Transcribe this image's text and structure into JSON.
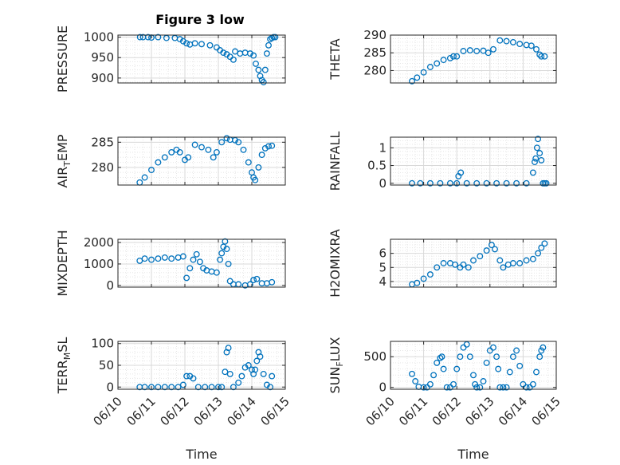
{
  "figure": {
    "title": "Figure 3 low",
    "xlabel": "Time",
    "x_tick_labels": [
      "06/10",
      "06/11",
      "06/12",
      "06/13",
      "06/14",
      "06/15"
    ],
    "marker_color": "#0072bd",
    "grid": true
  },
  "chart_data": [
    {
      "type": "scatter",
      "title": "Figure 3 low",
      "ylabel": "PRESSURE",
      "ylabel_main": "PRESSURE",
      "ylabel_sub": "",
      "ylabel_tail": "",
      "xlabel": "",
      "xlim": [
        "06/10",
        "06/15"
      ],
      "ylim": [
        888,
        1005
      ],
      "yticks": [
        900,
        950,
        1000
      ],
      "ytick_labels": [
        "900",
        "950",
        "1000"
      ],
      "x": [
        10.66,
        10.75,
        10.9,
        11.0,
        11.2,
        11.45,
        11.7,
        11.85,
        11.95,
        12.05,
        12.15,
        12.3,
        12.5,
        12.75,
        12.95,
        13.05,
        13.15,
        13.25,
        13.35,
        13.45,
        13.5,
        13.65,
        13.8,
        13.95,
        14.05,
        14.12,
        14.2,
        14.25,
        14.3,
        14.35,
        14.4,
        14.45,
        14.5,
        14.55,
        14.6,
        14.65,
        14.7
      ],
      "y": [
        1000,
        1000,
        1000,
        999,
        1000,
        998,
        998,
        995,
        990,
        985,
        982,
        985,
        983,
        980,
        975,
        968,
        962,
        958,
        952,
        945,
        965,
        960,
        962,
        960,
        955,
        935,
        920,
        905,
        895,
        890,
        920,
        960,
        980,
        995,
        998,
        1000,
        1000
      ]
    },
    {
      "type": "scatter",
      "ylabel": "THETA",
      "ylabel_main": "THETA",
      "ylabel_sub": "",
      "ylabel_tail": "",
      "xlabel": "",
      "xlim": [
        "06/10",
        "06/15"
      ],
      "ylim": [
        276.5,
        290
      ],
      "yticks": [
        280,
        285,
        290
      ],
      "ytick_labels": [
        "280",
        "285",
        "290"
      ],
      "x": [
        10.65,
        10.8,
        11.0,
        11.2,
        11.4,
        11.6,
        11.8,
        11.9,
        12.0,
        12.2,
        12.4,
        12.6,
        12.8,
        12.95,
        13.1,
        13.3,
        13.5,
        13.7,
        13.9,
        14.1,
        14.25,
        14.4,
        14.5,
        14.55,
        14.65
      ],
      "y": [
        277,
        278,
        279.5,
        281,
        282,
        283,
        283.5,
        284,
        284,
        285.5,
        285.7,
        285.5,
        285.6,
        285,
        286,
        288.5,
        288.3,
        288,
        287.5,
        287.2,
        287,
        286,
        284.5,
        284,
        284
      ]
    },
    {
      "type": "scatter",
      "ylabel": "AIR_TEMP",
      "ylabel_main": "AIR",
      "ylabel_sub": "T",
      "ylabel_tail": "EMP",
      "xlabel": "",
      "xlim": [
        "06/10",
        "06/15"
      ],
      "ylim": [
        276.5,
        286
      ],
      "yticks": [
        280,
        285
      ],
      "ytick_labels": [
        "280",
        "285"
      ],
      "x": [
        10.65,
        10.8,
        11.0,
        11.2,
        11.4,
        11.6,
        11.75,
        11.85,
        12.0,
        12.1,
        12.3,
        12.5,
        12.7,
        12.85,
        12.95,
        13.1,
        13.25,
        13.35,
        13.5,
        13.6,
        13.75,
        13.9,
        14.0,
        14.05,
        14.1,
        14.2,
        14.3,
        14.4,
        14.5,
        14.6
      ],
      "y": [
        277,
        278,
        279.5,
        281,
        282,
        283,
        283.5,
        283,
        281.5,
        282,
        284.5,
        284,
        283.5,
        282,
        283,
        285,
        285.8,
        285.5,
        285.4,
        285,
        283.5,
        281,
        279,
        278,
        277.5,
        280,
        282.5,
        283.8,
        284.2,
        284.3
      ]
    },
    {
      "type": "scatter",
      "ylabel": "RAINFALL",
      "ylabel_main": "RAINFALL",
      "ylabel_sub": "",
      "ylabel_tail": "",
      "xlabel": "",
      "xlim": [
        "06/10",
        "06/15"
      ],
      "ylim": [
        -0.05,
        1.3
      ],
      "yticks": [
        0,
        0.5,
        1
      ],
      "ytick_labels": [
        "0",
        "0.5",
        "1"
      ],
      "x": [
        10.65,
        10.9,
        11.2,
        11.5,
        11.8,
        12.0,
        12.05,
        12.12,
        12.3,
        12.6,
        12.9,
        13.2,
        13.5,
        13.8,
        14.1,
        14.3,
        14.35,
        14.38,
        14.42,
        14.45,
        14.5,
        14.55,
        14.6,
        14.65,
        14.7
      ],
      "y": [
        0,
        0,
        0,
        0,
        0,
        0,
        0.2,
        0.3,
        0,
        0,
        0,
        0,
        0,
        0,
        0,
        0.3,
        0.6,
        0.7,
        1.0,
        1.25,
        0.85,
        0.65,
        0,
        0,
        0
      ]
    },
    {
      "type": "scatter",
      "ylabel": "MIXDEPTH",
      "ylabel_main": "MIXDEPTH",
      "ylabel_sub": "",
      "ylabel_tail": "",
      "xlabel": "",
      "xlim": [
        "06/10",
        "06/15"
      ],
      "ylim": [
        -80,
        2150
      ],
      "yticks": [
        0,
        1000,
        2000
      ],
      "ytick_labels": [
        "0",
        "1000",
        "2000"
      ],
      "x": [
        10.65,
        10.8,
        11.0,
        11.2,
        11.4,
        11.6,
        11.8,
        11.95,
        12.05,
        12.15,
        12.25,
        12.35,
        12.45,
        12.55,
        12.65,
        12.8,
        12.95,
        13.05,
        13.1,
        13.15,
        13.2,
        13.25,
        13.3,
        13.35,
        13.45,
        13.6,
        13.8,
        13.95,
        14.05,
        14.15,
        14.3,
        14.45,
        14.6
      ],
      "y": [
        1150,
        1250,
        1200,
        1250,
        1300,
        1250,
        1300,
        1350,
        350,
        800,
        1200,
        1450,
        1100,
        800,
        700,
        650,
        600,
        1200,
        1500,
        1800,
        2050,
        1700,
        1000,
        200,
        50,
        50,
        0,
        50,
        250,
        300,
        100,
        100,
        150
      ]
    },
    {
      "type": "scatter",
      "ylabel": "H2OMIXRA",
      "ylabel_main": "H2OMIXRA",
      "ylabel_sub": "",
      "ylabel_tail": "",
      "xlabel": "",
      "xlim": [
        "06/10",
        "06/15"
      ],
      "ylim": [
        3.6,
        7.0
      ],
      "yticks": [
        4,
        5,
        6
      ],
      "ytick_labels": [
        "4",
        "5",
        "6"
      ],
      "x": [
        10.65,
        10.8,
        11.0,
        11.2,
        11.4,
        11.6,
        11.8,
        11.95,
        12.1,
        12.2,
        12.35,
        12.5,
        12.7,
        12.9,
        13.05,
        13.15,
        13.3,
        13.4,
        13.55,
        13.7,
        13.9,
        14.1,
        14.3,
        14.45,
        14.55,
        14.65
      ],
      "y": [
        3.8,
        3.9,
        4.2,
        4.5,
        5.0,
        5.3,
        5.3,
        5.2,
        5.0,
        5.2,
        5.0,
        5.5,
        5.8,
        6.2,
        6.6,
        6.3,
        5.5,
        5.0,
        5.2,
        5.3,
        5.3,
        5.5,
        5.6,
        6.0,
        6.4,
        6.7
      ]
    },
    {
      "type": "scatter",
      "ylabel": "TERR_MSL",
      "ylabel_main": "TERR",
      "ylabel_sub": "M",
      "ylabel_tail": "SL",
      "xlabel": "Time",
      "xlim": [
        "06/10",
        "06/15"
      ],
      "ylim": [
        -5,
        105
      ],
      "yticks": [
        0,
        50,
        100
      ],
      "ytick_labels": [
        "0",
        "50",
        "100"
      ],
      "x": [
        10.65,
        10.8,
        11.0,
        11.2,
        11.4,
        11.6,
        11.8,
        11.95,
        12.05,
        12.15,
        12.25,
        12.4,
        12.6,
        12.8,
        13.0,
        13.1,
        13.2,
        13.25,
        13.3,
        13.35,
        13.45,
        13.6,
        13.7,
        13.8,
        13.9,
        14.0,
        14.05,
        14.1,
        14.15,
        14.2,
        14.25,
        14.35,
        14.45,
        14.55,
        14.6
      ],
      "y": [
        0,
        0,
        0,
        0,
        0,
        0,
        0,
        5,
        25,
        25,
        20,
        0,
        0,
        0,
        0,
        0,
        35,
        80,
        90,
        30,
        0,
        10,
        25,
        45,
        50,
        40,
        30,
        40,
        60,
        80,
        70,
        30,
        5,
        0,
        25
      ]
    },
    {
      "type": "scatter",
      "ylabel": "SUN_FLUX",
      "ylabel_main": "SUN",
      "ylabel_sub": "F",
      "ylabel_tail": "LUX",
      "xlabel": "Time",
      "xlim": [
        "06/10",
        "06/15"
      ],
      "ylim": [
        -30,
        750
      ],
      "yticks": [
        0,
        500
      ],
      "ytick_labels": [
        "0",
        "500"
      ],
      "x": [
        10.65,
        10.75,
        10.85,
        11.0,
        11.1,
        11.2,
        11.3,
        11.4,
        11.5,
        11.55,
        11.6,
        11.7,
        11.8,
        11.9,
        12.0,
        12.1,
        12.2,
        12.3,
        12.4,
        12.5,
        12.55,
        12.6,
        12.7,
        12.8,
        12.9,
        13.0,
        13.1,
        13.2,
        13.25,
        13.3,
        13.4,
        13.5,
        13.6,
        13.7,
        13.8,
        13.9,
        14.0,
        14.1,
        14.2,
        14.3,
        14.4,
        14.5,
        14.55,
        14.6
      ],
      "y": [
        220,
        100,
        10,
        0,
        0,
        50,
        200,
        400,
        480,
        500,
        300,
        0,
        0,
        50,
        300,
        500,
        650,
        700,
        500,
        200,
        50,
        0,
        0,
        100,
        400,
        600,
        650,
        500,
        300,
        0,
        0,
        0,
        250,
        500,
        600,
        350,
        50,
        0,
        0,
        50,
        250,
        500,
        600,
        650
      ]
    }
  ]
}
